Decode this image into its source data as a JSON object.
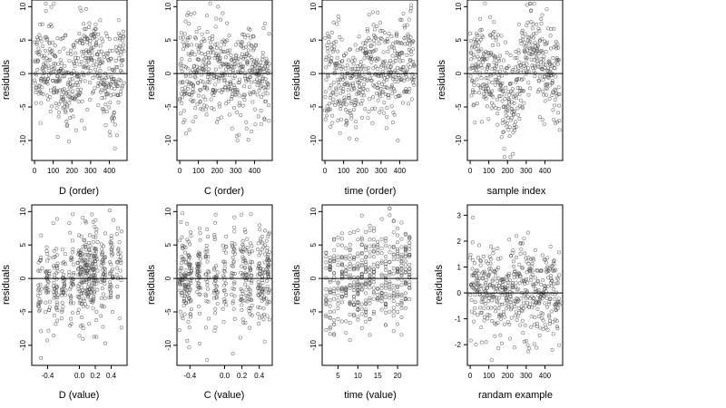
{
  "chart_data": [
    {
      "type": "scatter",
      "panel": "D (order)",
      "xlabel": "D (order)",
      "ylabel": "residuals",
      "x_generator": "order",
      "pattern": "d_order",
      "n": 480,
      "xlim": [
        -15,
        495
      ],
      "ylim": [
        -13,
        11
      ],
      "xticks": [
        0,
        100,
        200,
        300,
        400
      ],
      "yticks": [
        -10,
        -5,
        0,
        5,
        10
      ],
      "ytick_labels": [
        "-10",
        "-5",
        "0",
        "5",
        "10"
      ],
      "ytick_rotate": true,
      "hline": 0,
      "seed": 11
    },
    {
      "type": "scatter",
      "panel": "C (order)",
      "xlabel": "C (order)",
      "ylabel": "residuals",
      "x_generator": "order",
      "pattern": "c_order",
      "n": 480,
      "xlim": [
        -15,
        495
      ],
      "ylim": [
        -13,
        11
      ],
      "xticks": [
        0,
        100,
        200,
        300,
        400
      ],
      "yticks": [
        -10,
        -5,
        0,
        5,
        10
      ],
      "ytick_labels": [
        "-10",
        "-5",
        "0",
        "5",
        "10"
      ],
      "ytick_rotate": true,
      "hline": 0,
      "seed": 23
    },
    {
      "type": "scatter",
      "panel": "time (order)",
      "xlabel": "time (order)",
      "ylabel": "residuals",
      "x_generator": "order",
      "pattern": "t_order",
      "n": 480,
      "xlim": [
        -15,
        495
      ],
      "ylim": [
        -13,
        11
      ],
      "xticks": [
        0,
        100,
        200,
        300,
        400
      ],
      "yticks": [
        -10,
        -5,
        0,
        5,
        10
      ],
      "ytick_labels": [
        "-10",
        "-5",
        "0",
        "5",
        "10"
      ],
      "ytick_rotate": true,
      "hline": 0,
      "seed": 37
    },
    {
      "type": "scatter",
      "panel": "sample index",
      "xlabel": "sample index",
      "ylabel": "residuals",
      "x_generator": "order",
      "pattern": "s_index",
      "n": 480,
      "xlim": [
        -15,
        495
      ],
      "ylim": [
        -13,
        11
      ],
      "xticks": [
        0,
        100,
        200,
        300,
        400
      ],
      "yticks": [
        -10,
        -5,
        0,
        5,
        10
      ],
      "ytick_labels": [
        "-10",
        "-5",
        "0",
        "5",
        "10"
      ],
      "ytick_rotate": true,
      "hline": 0,
      "seed": 41
    },
    {
      "type": "scatter",
      "panel": "D (value)",
      "xlabel": "D (value)",
      "ylabel": "residuals",
      "x_generator": "d_value",
      "pattern": "d_value",
      "n": 480,
      "xlim": [
        -0.6,
        0.6
      ],
      "ylim": [
        -13,
        11
      ],
      "xticks": [
        -0.4,
        0.0,
        0.2,
        0.4
      ],
      "xtick_labels": [
        "-0.4",
        "0.0",
        "0.2",
        "0.4"
      ],
      "yticks": [
        -10,
        -5,
        0,
        5,
        10
      ],
      "ytick_labels": [
        "-10",
        "-5",
        "0",
        "5",
        "10"
      ],
      "ytick_rotate": true,
      "hline": 0,
      "seed": 53
    },
    {
      "type": "scatter",
      "panel": "C (value)",
      "xlabel": "C (value)",
      "ylabel": "residuals",
      "x_generator": "c_value",
      "pattern": "c_value",
      "n": 480,
      "xlim": [
        -0.55,
        0.55
      ],
      "ylim": [
        -13,
        11
      ],
      "xticks": [
        -0.4,
        0.0,
        0.2,
        0.4
      ],
      "xtick_labels": [
        "-0.4",
        "0.0",
        "0.2",
        "0.4"
      ],
      "yticks": [
        -10,
        -5,
        0,
        5,
        10
      ],
      "ytick_labels": [
        "-10",
        "-5",
        "0",
        "5",
        "10"
      ],
      "ytick_rotate": true,
      "hline": 0,
      "seed": 67
    },
    {
      "type": "scatter",
      "panel": "time (value)",
      "xlabel": "time (value)",
      "ylabel": "residuals",
      "x_generator": "time_value",
      "pattern": "t_value",
      "n": 480,
      "xlim": [
        1,
        25
      ],
      "ylim": [
        -13,
        11
      ],
      "xticks": [
        5,
        10,
        15,
        20
      ],
      "yticks": [
        -10,
        -5,
        0,
        5,
        10
      ],
      "ytick_labels": [
        "-10",
        "-5",
        "0",
        "5",
        "10"
      ],
      "ytick_rotate": true,
      "hline": 0,
      "seed": 79
    },
    {
      "type": "scatter",
      "panel": "randam example",
      "xlabel": "randam example",
      "ylabel": "residuals",
      "x_generator": "order",
      "pattern": "random",
      "n": 480,
      "xlim": [
        -15,
        495
      ],
      "ylim": [
        -2.8,
        3.4
      ],
      "xticks": [
        0,
        100,
        200,
        300,
        400
      ],
      "yticks": [
        -2,
        -1,
        0,
        1,
        2,
        3
      ],
      "ytick_labels": [
        "-2",
        "-1",
        "0",
        "1",
        "2",
        "3"
      ],
      "ytick_rotate": false,
      "hline": 0,
      "seed": 97
    }
  ]
}
